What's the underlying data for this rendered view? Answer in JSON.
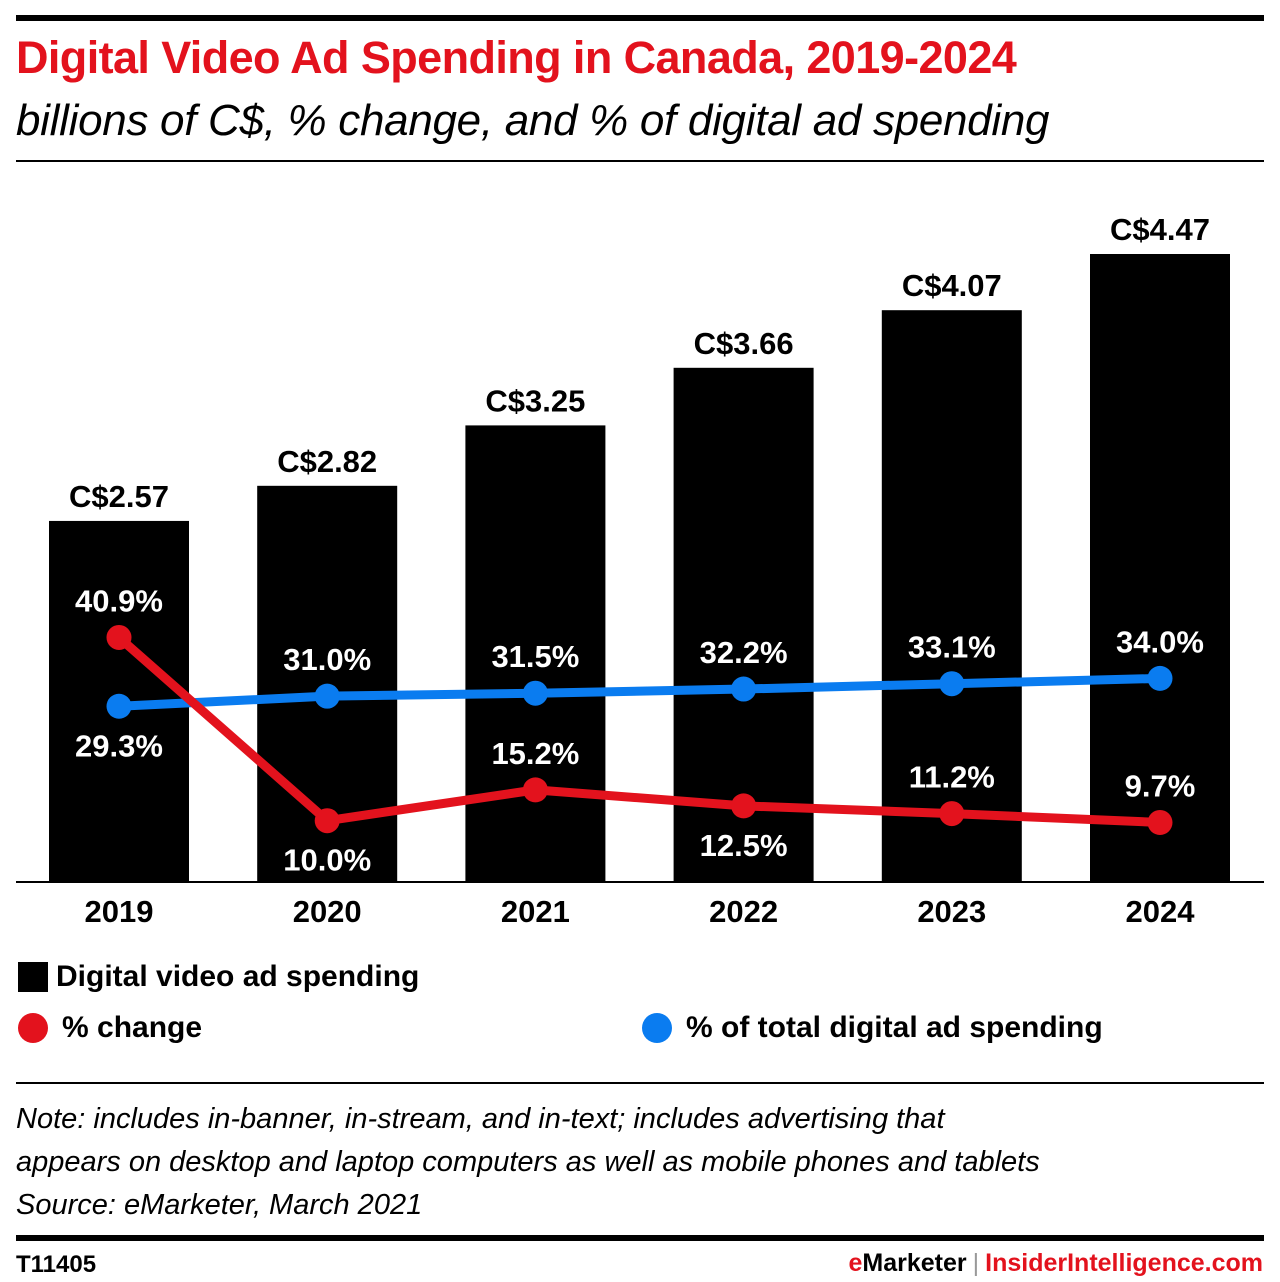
{
  "header": {
    "title": "Digital Video Ad Spending in Canada, 2019-2024",
    "subtitle": "billions of C$, % change, and % of digital ad spending"
  },
  "colors": {
    "title": "#e3121d",
    "bars": "#000000",
    "change_line": "#e3121d",
    "share_line": "#0a7cf0",
    "data_label_on_bar": "#ffffff"
  },
  "chart_data": {
    "type": "bar",
    "title": "Digital Video Ad Spending in Canada, 2019-2024",
    "subtitle": "billions of C$, % change, and % of digital ad spending",
    "xlabel": "",
    "ylabel": "",
    "categories": [
      "2019",
      "2020",
      "2021",
      "2022",
      "2023",
      "2024"
    ],
    "grid": false,
    "legend_position": "bottom",
    "series": [
      {
        "name": "Digital video ad spending",
        "type": "bar",
        "unit": "billions of C$",
        "values": [
          2.57,
          2.82,
          3.25,
          3.66,
          4.07,
          4.47
        ],
        "labels": [
          "C$2.57",
          "C$2.82",
          "C$3.25",
          "C$3.66",
          "C$4.07",
          "C$4.47"
        ],
        "ylim": [
          0,
          4.47
        ]
      },
      {
        "name": "% change",
        "type": "line",
        "unit": "%",
        "values": [
          40.9,
          10.0,
          15.2,
          12.5,
          11.2,
          9.7
        ],
        "labels": [
          "40.9%",
          "10.0%",
          "15.2%",
          "12.5%",
          "11.2%",
          "9.7%"
        ],
        "label_positions": [
          "above",
          "below",
          "above",
          "below",
          "above",
          "above"
        ]
      },
      {
        "name": "% of total digital ad spending",
        "type": "line",
        "unit": "%",
        "values": [
          29.3,
          31.0,
          31.5,
          32.2,
          33.1,
          34.0
        ],
        "labels": [
          "29.3%",
          "31.0%",
          "31.5%",
          "32.2%",
          "33.1%",
          "34.0%"
        ],
        "label_positions": [
          "below",
          "above",
          "above",
          "above",
          "above",
          "above"
        ]
      }
    ]
  },
  "legend": {
    "bars": "Digital video ad spending",
    "change": "% change",
    "share": "% of total digital ad spending"
  },
  "notes": {
    "line1": "Note: includes in-banner, in-stream, and in-text; includes advertising that",
    "line2": "appears on desktop and laptop computers as well as mobile phones and tablets",
    "source": "Source: eMarketer, March 2021"
  },
  "footer": {
    "chart_id": "T11405",
    "brand1": "eMarketer",
    "separator": "|",
    "brand2": "InsiderIntelligence.com"
  }
}
